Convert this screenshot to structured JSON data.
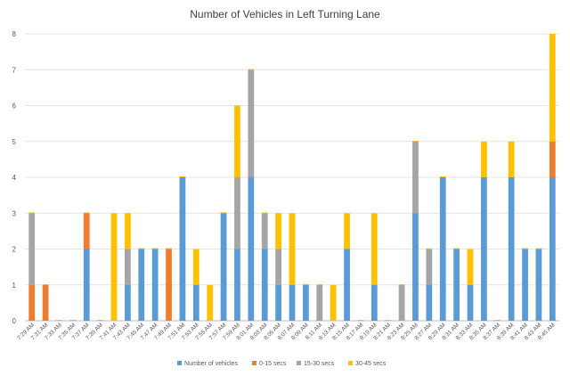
{
  "chart_data": {
    "type": "bar",
    "stacked": true,
    "title": "Number of Vehicles in Left Turning Lane",
    "xlabel": "",
    "ylabel": "",
    "ylim": [
      0,
      8
    ],
    "yticks": [
      0,
      1,
      2,
      3,
      4,
      5,
      6,
      7,
      8
    ],
    "grid": true,
    "legend_position": "bottom",
    "categories": [
      "7:29 AM",
      "7:31 AM",
      "7:33 AM",
      "7:35 AM",
      "7:37 AM",
      "7:39 AM",
      "7:41 AM",
      "7:43 AM",
      "7:45 AM",
      "7:47 AM",
      "7:49 AM",
      "7:51 AM",
      "7:53 AM",
      "7:55 AM",
      "7:57 AM",
      "7:59 AM",
      "8:01 AM",
      "8:03 AM",
      "8:05 AM",
      "8:07 AM",
      "8:09 AM",
      "8:11 AM",
      "8:13 AM",
      "8:15 AM",
      "8:17 AM",
      "8:19 AM",
      "8:21 AM",
      "8:23 AM",
      "8:25 AM",
      "8:27 AM",
      "8:29 AM",
      "8:31 AM",
      "8:33 AM",
      "8:35 AM",
      "8:37 AM",
      "8:39 AM",
      "8:41 AM",
      "8:43 AM",
      "8:45 AM"
    ],
    "series": [
      {
        "name": "Number of vehicles",
        "color": "#5B9BD5",
        "values": [
          0,
          0,
          0,
          0,
          2,
          0,
          0,
          1,
          2,
          2,
          0,
          4,
          1,
          0,
          3,
          2,
          4,
          2,
          1,
          1,
          1,
          0,
          0,
          2,
          0,
          1,
          0,
          0,
          3,
          1,
          4,
          2,
          1,
          4,
          0,
          4,
          2,
          2,
          4
        ]
      },
      {
        "name": "0-15 secs",
        "color": "#ED7D31",
        "values": [
          1,
          1,
          0,
          0,
          1,
          0,
          0,
          0,
          0,
          0,
          2,
          0,
          0,
          0,
          0,
          0,
          0,
          0,
          0,
          0,
          0,
          0,
          0,
          0,
          0,
          0,
          0,
          0,
          0,
          0,
          0,
          0,
          0,
          0,
          0,
          0,
          0,
          0,
          1
        ]
      },
      {
        "name": "15-30 secs",
        "color": "#A5A5A5",
        "values": [
          2,
          0,
          0,
          0,
          0,
          0,
          0,
          1,
          0,
          0,
          0,
          0,
          0,
          0,
          0,
          2,
          3,
          1,
          1,
          0,
          0,
          1,
          0,
          0,
          0,
          0,
          0,
          1,
          2,
          1,
          0,
          0,
          0,
          0,
          0,
          0,
          0,
          0,
          0
        ]
      },
      {
        "name": "30-45 secs",
        "color": "#FFC000",
        "values": [
          0,
          0,
          0,
          0,
          0,
          0,
          3,
          1,
          0,
          0,
          0,
          0,
          1,
          1,
          0,
          2,
          0,
          0,
          1,
          2,
          0,
          0,
          1,
          1,
          0,
          2,
          0,
          0,
          0,
          0,
          0,
          0,
          1,
          1,
          0,
          1,
          0,
          0,
          3
        ]
      }
    ]
  }
}
